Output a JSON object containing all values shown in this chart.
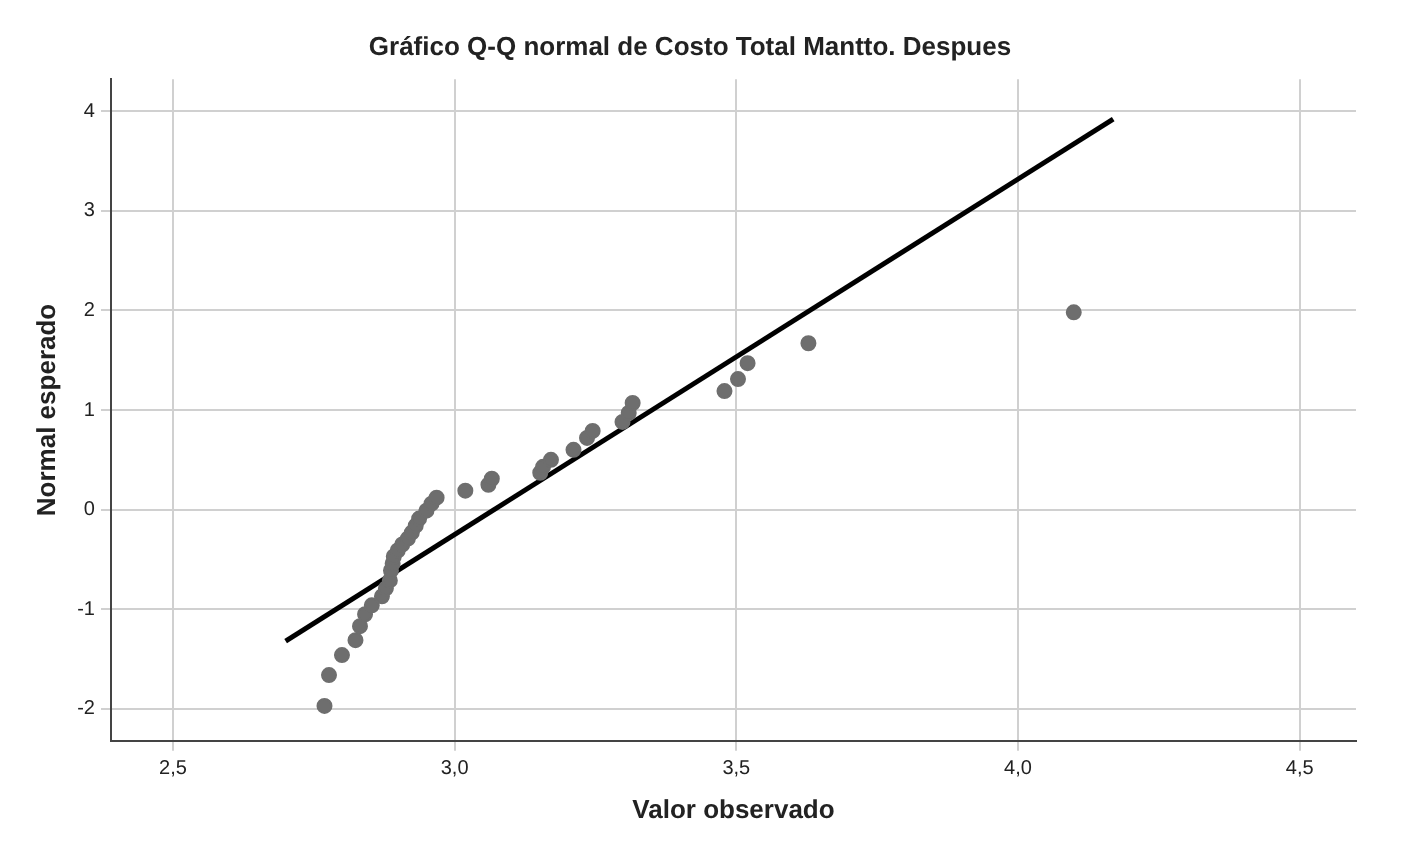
{
  "chart_data": {
    "type": "scatter",
    "title": "Gráfico Q-Q normal de Costo Total Mantto. Despues",
    "xlabel": "Valor observado",
    "ylabel": "Normal esperado",
    "grid": true,
    "legend": false,
    "marker": "circle",
    "xlim": [
      2.39,
      4.6
    ],
    "ylim": [
      -2.32,
      4.32
    ],
    "xticks": [
      {
        "value": 2.5,
        "label": "2,5"
      },
      {
        "value": 3.0,
        "label": "3,0"
      },
      {
        "value": 3.5,
        "label": "3,5"
      },
      {
        "value": 4.0,
        "label": "4,0"
      },
      {
        "value": 4.5,
        "label": "4,5"
      }
    ],
    "yticks": [
      -2,
      -1,
      0,
      1,
      2,
      3,
      4
    ],
    "series": [
      {
        "color": "#6e6e6e",
        "x": [
          2.769,
          2.777,
          2.8,
          2.824,
          2.832,
          2.841,
          2.853,
          2.871,
          2.878,
          2.885,
          2.887,
          2.89,
          2.892,
          2.899,
          2.907,
          2.917,
          2.924,
          2.931,
          2.937,
          2.95,
          2.959,
          2.968,
          3.019,
          3.06,
          3.066,
          3.152,
          3.157,
          3.171,
          3.211,
          3.235,
          3.245,
          3.298,
          3.309,
          3.316,
          3.479,
          3.503,
          3.52,
          3.628,
          4.099
        ],
        "values": [
          -1.97,
          -1.66,
          -1.46,
          -1.31,
          -1.17,
          -1.05,
          -0.96,
          -0.87,
          -0.79,
          -0.71,
          -0.61,
          -0.54,
          -0.47,
          -0.41,
          -0.35,
          -0.29,
          -0.23,
          -0.16,
          -0.09,
          -0.01,
          0.06,
          0.12,
          0.19,
          0.25,
          0.31,
          0.37,
          0.43,
          0.5,
          0.6,
          0.72,
          0.79,
          0.88,
          0.97,
          1.07,
          1.19,
          1.31,
          1.47,
          1.67,
          1.98
        ]
      },
      {
        "type": "line",
        "color": "#000000",
        "marker": "none",
        "line_style": "solid",
        "x": [
          2.7,
          4.169
        ],
        "values": [
          -1.32,
          3.92
        ]
      }
    ]
  }
}
